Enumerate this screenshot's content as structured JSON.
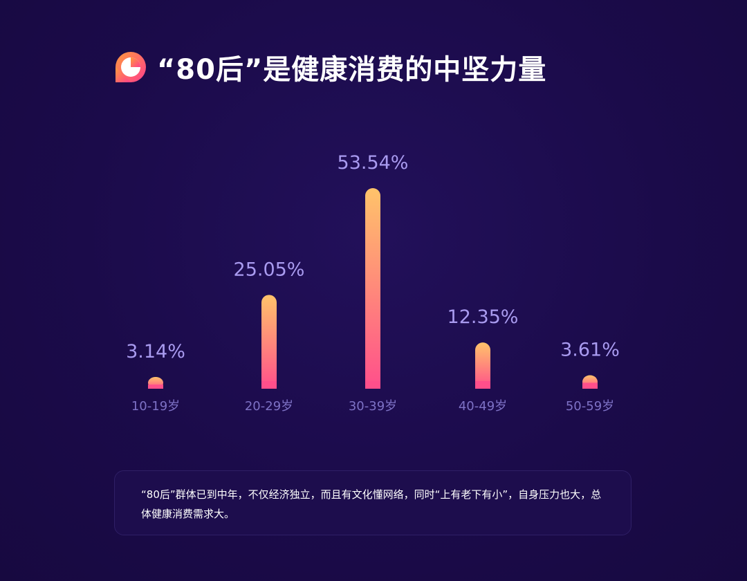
{
  "header": {
    "title": "“80后”是健康消费的中坚力量",
    "icon": "pie-chart-icon"
  },
  "chart_data": {
    "type": "bar",
    "title": "“80后”是健康消费的中坚力量",
    "xlabel": "",
    "ylabel": "",
    "categories": [
      "10-19岁",
      "20-29岁",
      "30-39岁",
      "40-49岁",
      "50-59岁"
    ],
    "values": [
      3.14,
      25.05,
      53.54,
      12.35,
      3.61
    ],
    "value_labels": [
      "3.14%",
      "25.05%",
      "53.54%",
      "12.35%",
      "3.61%"
    ],
    "ylim": [
      0,
      53.54
    ],
    "grid": false,
    "legend": "none"
  },
  "note": {
    "text": "“80后”群体已到中年，不仅经济独立，而且有文化懂网络，同时“上有老下有小”，自身压力也大，总体健康消费需求大。"
  },
  "colors": {
    "background": "#1b0b4a",
    "bar_top": "#ffc36a",
    "bar_bottom": "#ff4f8b",
    "value_label": "#a99bf0",
    "category_label": "#7e72c6",
    "icon_gradient_start": "#ff8a3d",
    "icon_gradient_end": "#ff3f8c"
  }
}
